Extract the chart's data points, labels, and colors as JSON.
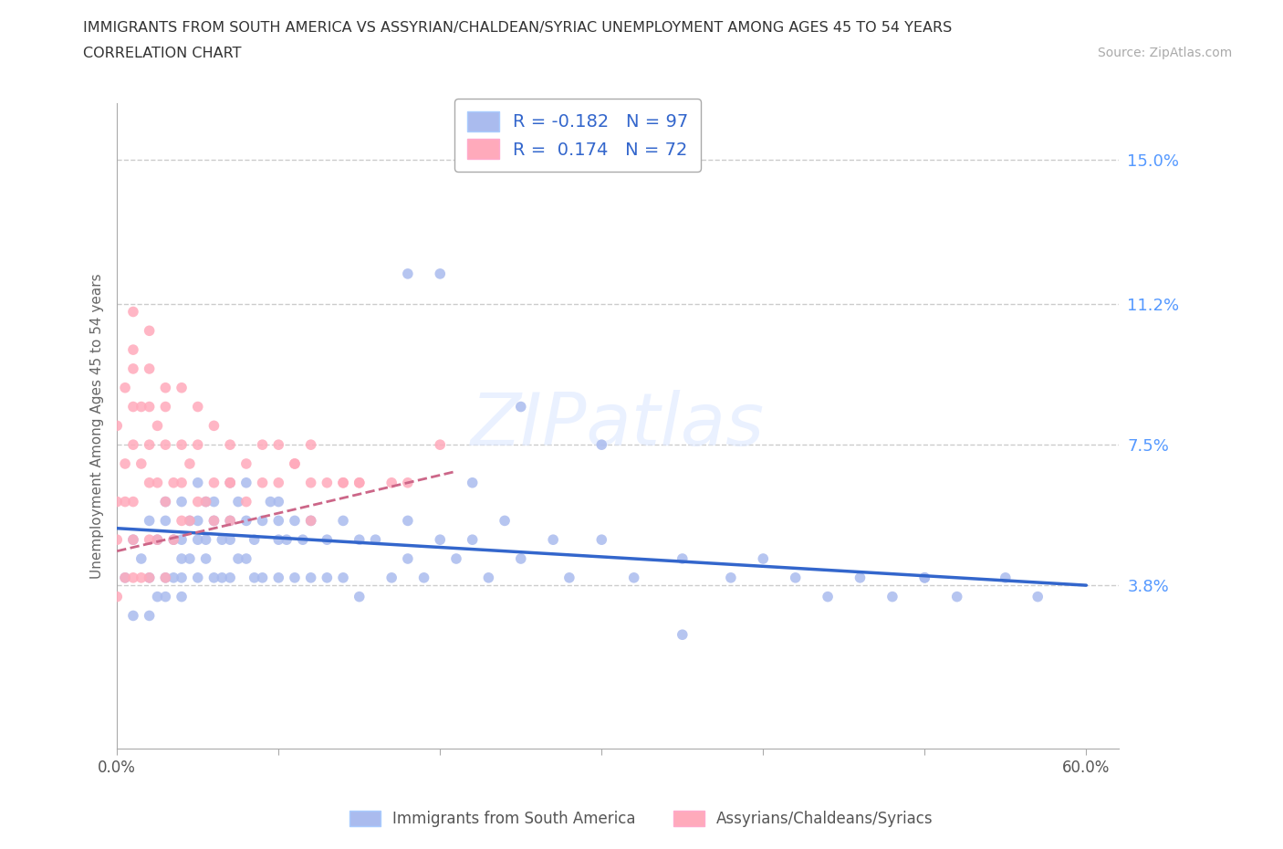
{
  "title_line1": "IMMIGRANTS FROM SOUTH AMERICA VS ASSYRIAN/CHALDEAN/SYRIAC UNEMPLOYMENT AMONG AGES 45 TO 54 YEARS",
  "title_line2": "CORRELATION CHART",
  "source_text": "Source: ZipAtlas.com",
  "ylabel": "Unemployment Among Ages 45 to 54 years",
  "xlim": [
    0.0,
    0.62
  ],
  "ylim": [
    -0.005,
    0.165
  ],
  "xticks": [
    0.0,
    0.1,
    0.2,
    0.3,
    0.4,
    0.5,
    0.6
  ],
  "xticklabels": [
    "0.0%",
    "",
    "",
    "",
    "",
    "",
    "60.0%"
  ],
  "ytick_values": [
    0.038,
    0.075,
    0.112,
    0.15
  ],
  "ytick_labels": [
    "3.8%",
    "7.5%",
    "11.2%",
    "15.0%"
  ],
  "grid_color": "#cccccc",
  "watermark": "ZIPatlas",
  "blue_color": "#aabbee",
  "pink_color": "#ffaabb",
  "legend_R1": "-0.182",
  "legend_N1": "97",
  "legend_R2": "0.174",
  "legend_N2": "72",
  "legend_label1": "Immigrants from South America",
  "legend_label2": "Assyrians/Chaldeans/Syriacs",
  "blue_scatter_x": [
    0.005,
    0.01,
    0.01,
    0.015,
    0.02,
    0.02,
    0.02,
    0.025,
    0.025,
    0.03,
    0.03,
    0.03,
    0.03,
    0.035,
    0.035,
    0.04,
    0.04,
    0.04,
    0.04,
    0.04,
    0.045,
    0.045,
    0.05,
    0.05,
    0.05,
    0.05,
    0.055,
    0.055,
    0.055,
    0.06,
    0.06,
    0.06,
    0.065,
    0.065,
    0.07,
    0.07,
    0.07,
    0.07,
    0.075,
    0.075,
    0.08,
    0.08,
    0.08,
    0.085,
    0.085,
    0.09,
    0.09,
    0.095,
    0.1,
    0.1,
    0.1,
    0.1,
    0.105,
    0.11,
    0.11,
    0.115,
    0.12,
    0.12,
    0.13,
    0.13,
    0.14,
    0.14,
    0.15,
    0.15,
    0.16,
    0.17,
    0.18,
    0.18,
    0.19,
    0.2,
    0.21,
    0.22,
    0.23,
    0.24,
    0.25,
    0.27,
    0.28,
    0.3,
    0.32,
    0.35,
    0.38,
    0.4,
    0.42,
    0.44,
    0.46,
    0.48,
    0.5,
    0.52,
    0.55,
    0.57,
    0.2,
    0.25,
    0.3,
    0.22,
    0.18,
    0.35,
    0.5
  ],
  "blue_scatter_y": [
    0.04,
    0.05,
    0.03,
    0.045,
    0.04,
    0.055,
    0.03,
    0.05,
    0.035,
    0.06,
    0.04,
    0.055,
    0.035,
    0.05,
    0.04,
    0.06,
    0.045,
    0.05,
    0.04,
    0.035,
    0.055,
    0.045,
    0.065,
    0.05,
    0.04,
    0.055,
    0.06,
    0.045,
    0.05,
    0.055,
    0.04,
    0.06,
    0.05,
    0.04,
    0.065,
    0.05,
    0.055,
    0.04,
    0.06,
    0.045,
    0.055,
    0.045,
    0.065,
    0.05,
    0.04,
    0.055,
    0.04,
    0.06,
    0.05,
    0.055,
    0.04,
    0.06,
    0.05,
    0.055,
    0.04,
    0.05,
    0.055,
    0.04,
    0.05,
    0.04,
    0.055,
    0.04,
    0.05,
    0.035,
    0.05,
    0.04,
    0.055,
    0.045,
    0.04,
    0.05,
    0.045,
    0.05,
    0.04,
    0.055,
    0.045,
    0.05,
    0.04,
    0.05,
    0.04,
    0.045,
    0.04,
    0.045,
    0.04,
    0.035,
    0.04,
    0.035,
    0.04,
    0.035,
    0.04,
    0.035,
    0.12,
    0.085,
    0.075,
    0.065,
    0.12,
    0.025,
    0.04
  ],
  "pink_scatter_x": [
    0.0,
    0.0,
    0.0,
    0.0,
    0.005,
    0.005,
    0.005,
    0.005,
    0.01,
    0.01,
    0.01,
    0.01,
    0.01,
    0.01,
    0.015,
    0.015,
    0.015,
    0.02,
    0.02,
    0.02,
    0.02,
    0.02,
    0.025,
    0.025,
    0.025,
    0.03,
    0.03,
    0.03,
    0.03,
    0.035,
    0.035,
    0.04,
    0.04,
    0.04,
    0.045,
    0.045,
    0.05,
    0.05,
    0.055,
    0.06,
    0.06,
    0.07,
    0.07,
    0.08,
    0.09,
    0.1,
    0.11,
    0.12,
    0.12,
    0.13,
    0.14,
    0.15,
    0.17,
    0.18,
    0.2,
    0.01,
    0.01,
    0.02,
    0.02,
    0.03,
    0.04,
    0.05,
    0.06,
    0.07,
    0.07,
    0.08,
    0.09,
    0.1,
    0.11,
    0.12,
    0.14,
    0.15
  ],
  "pink_scatter_y": [
    0.035,
    0.05,
    0.06,
    0.08,
    0.04,
    0.06,
    0.07,
    0.09,
    0.04,
    0.05,
    0.06,
    0.075,
    0.085,
    0.095,
    0.04,
    0.07,
    0.085,
    0.04,
    0.05,
    0.065,
    0.075,
    0.085,
    0.05,
    0.065,
    0.08,
    0.04,
    0.06,
    0.075,
    0.09,
    0.05,
    0.065,
    0.055,
    0.065,
    0.075,
    0.055,
    0.07,
    0.06,
    0.075,
    0.06,
    0.065,
    0.055,
    0.065,
    0.055,
    0.06,
    0.065,
    0.065,
    0.07,
    0.075,
    0.055,
    0.065,
    0.065,
    0.065,
    0.065,
    0.065,
    0.075,
    0.1,
    0.11,
    0.095,
    0.105,
    0.085,
    0.09,
    0.085,
    0.08,
    0.075,
    0.065,
    0.07,
    0.075,
    0.075,
    0.07,
    0.065,
    0.065,
    0.065
  ],
  "blue_trend_x0": 0.0,
  "blue_trend_x1": 0.6,
  "blue_trend_y0": 0.053,
  "blue_trend_y1": 0.038,
  "pink_trend_x0": 0.0,
  "pink_trend_x1": 0.21,
  "pink_trend_y0": 0.047,
  "pink_trend_y1": 0.068
}
